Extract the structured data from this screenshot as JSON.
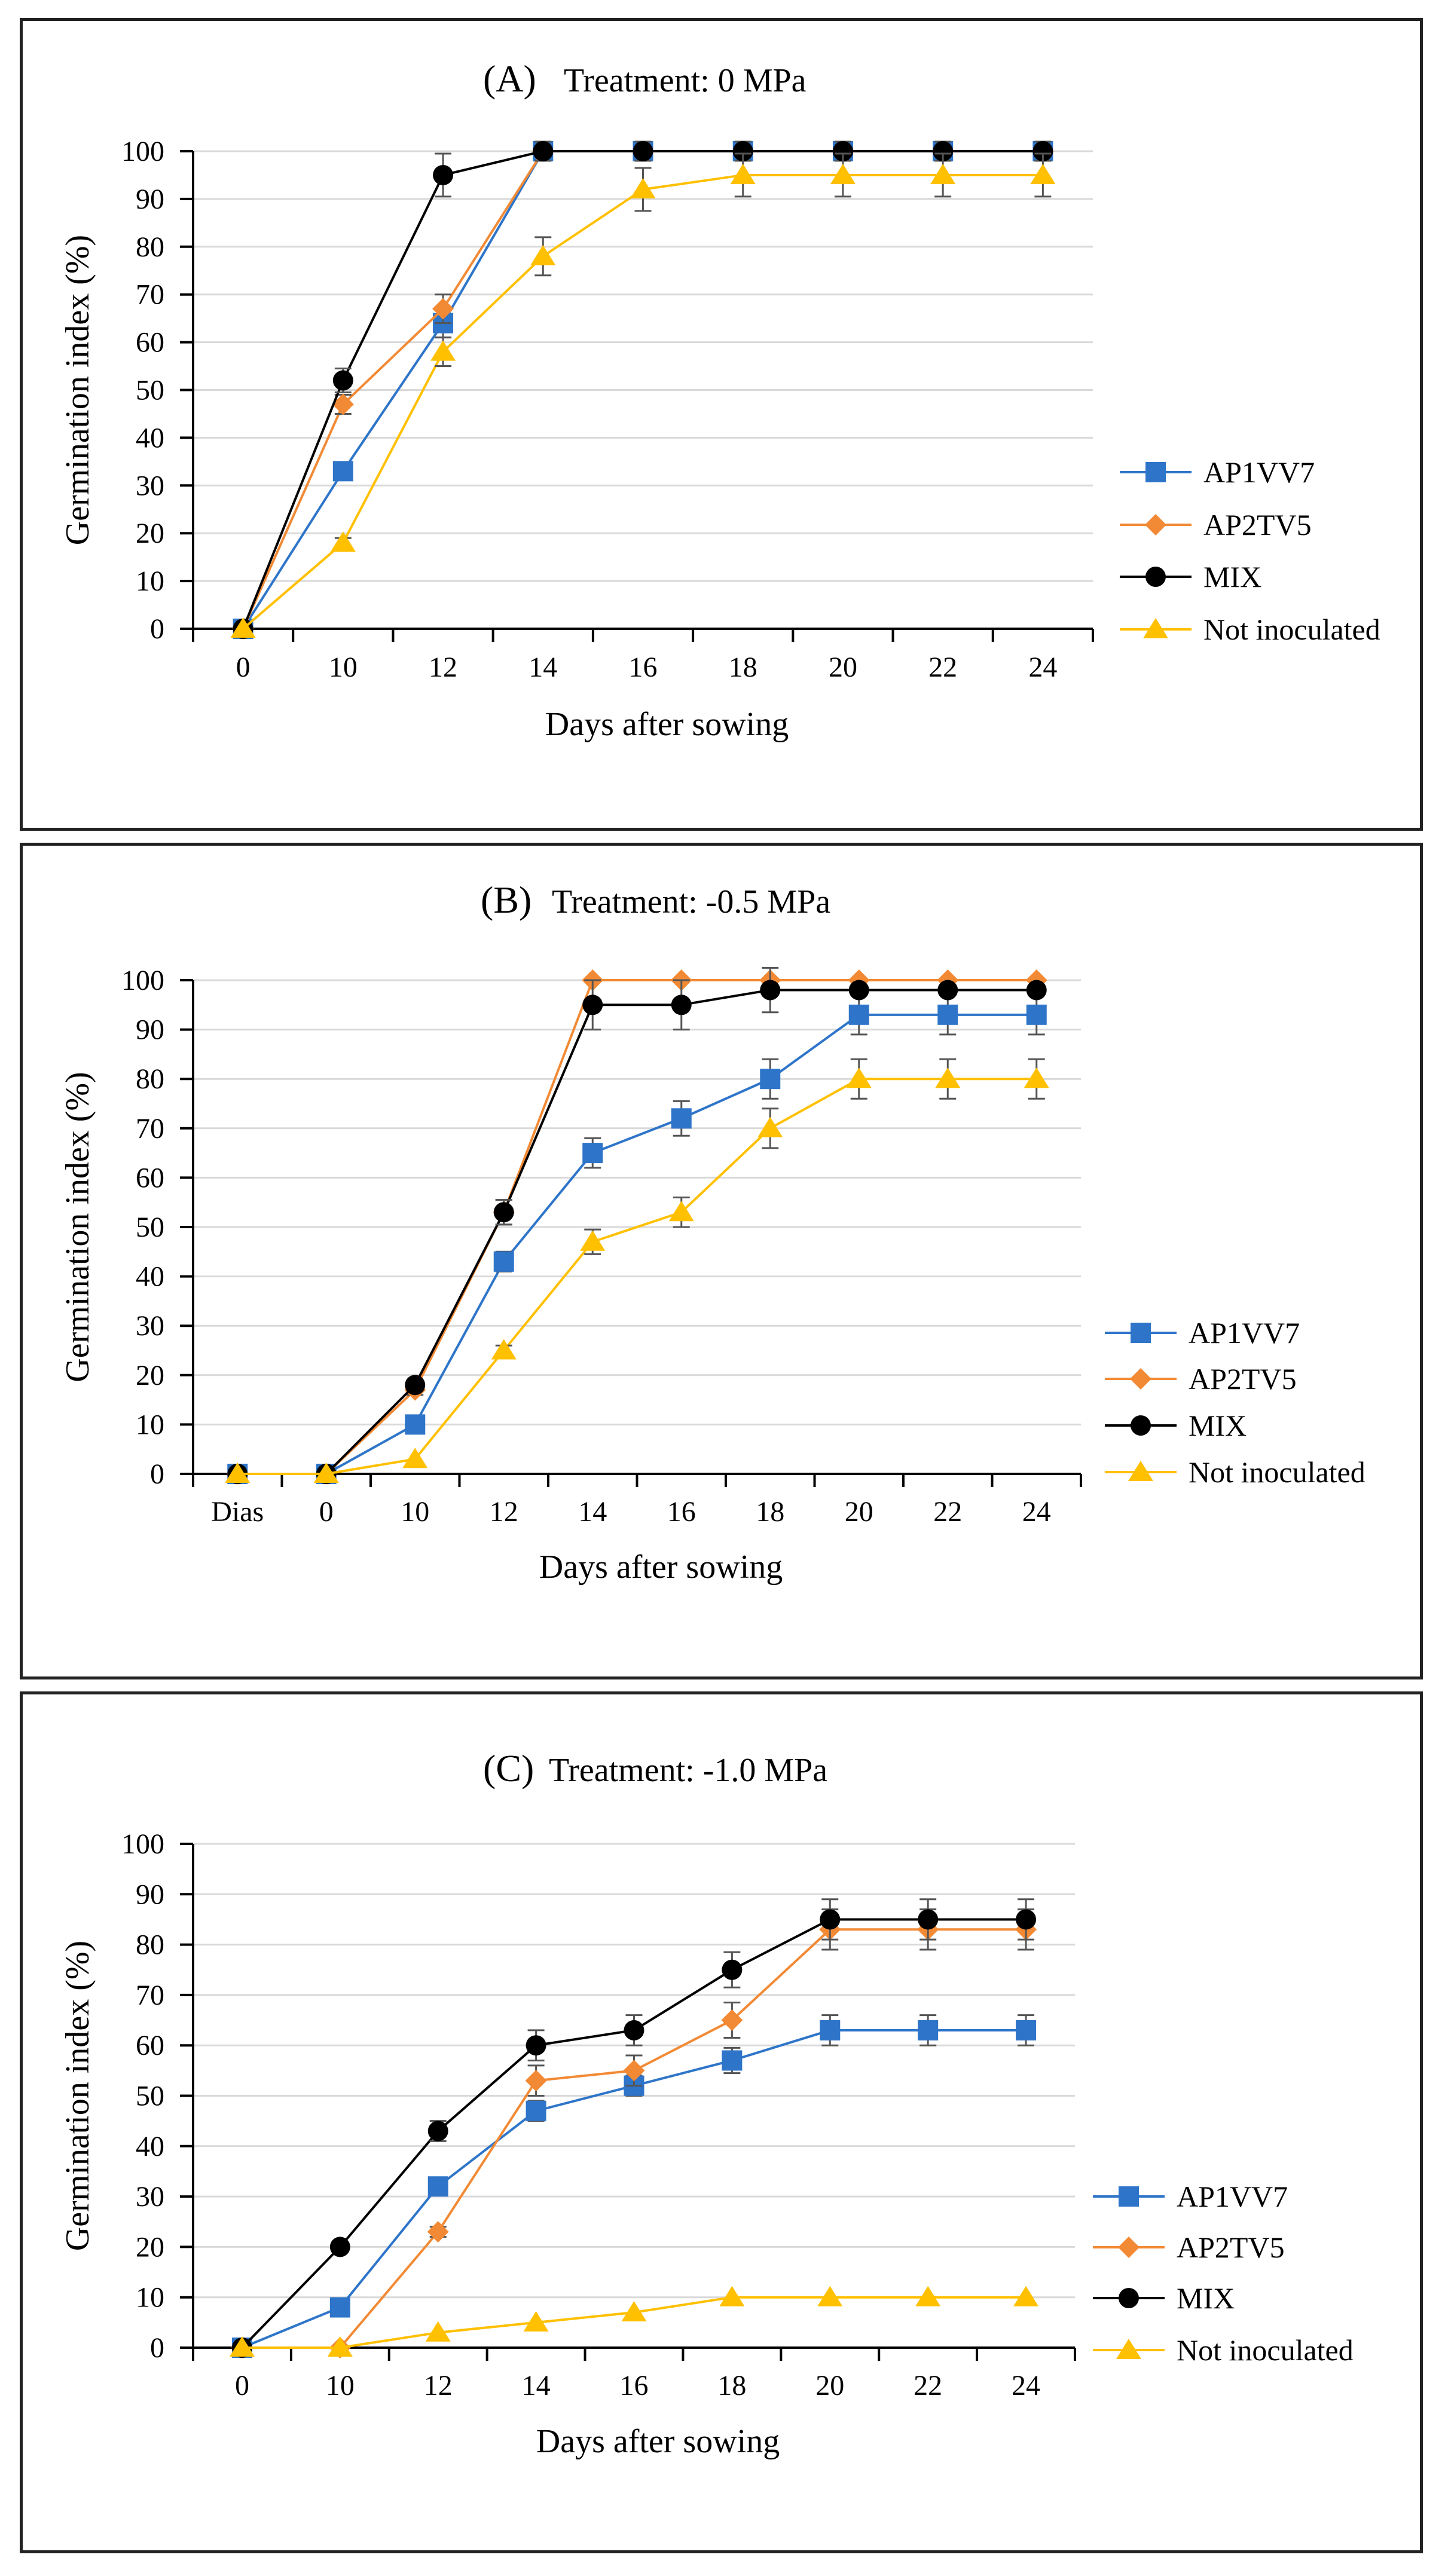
{
  "chart_data": [
    {
      "type": "line",
      "title_letter": "(A)",
      "title": "Treatment: 0 MPa",
      "xlabel": "Days after sowing",
      "ylabel": "Germination index (%)",
      "categories": [
        "0",
        "10",
        "12",
        "14",
        "16",
        "18",
        "20",
        "22",
        "24"
      ],
      "ylim": [
        0,
        100
      ],
      "yticks": [
        "0",
        "10",
        "20",
        "30",
        "40",
        "50",
        "60",
        "70",
        "80",
        "90",
        "100"
      ],
      "series": [
        {
          "name": "AP1VV7",
          "color": "#2E75C9",
          "marker": "square",
          "values": [
            0,
            33,
            64,
            100,
            100,
            100,
            100,
            100,
            100
          ],
          "errors": [
            0,
            1.5,
            3,
            2,
            2,
            2,
            2,
            2,
            2
          ]
        },
        {
          "name": "AP2TV5",
          "color": "#F28A35",
          "marker": "diamond",
          "values": [
            0,
            47,
            67,
            100,
            100,
            100,
            100,
            100,
            100
          ],
          "errors": [
            0,
            2,
            3,
            2,
            2,
            2,
            2,
            2,
            2
          ]
        },
        {
          "name": "MIX",
          "color": "#000000",
          "marker": "circle",
          "values": [
            0,
            52,
            95,
            100,
            100,
            100,
            100,
            100,
            100
          ],
          "errors": [
            0,
            2.5,
            4.5,
            2,
            2,
            2,
            2,
            2,
            2
          ]
        },
        {
          "name": "Not inoculated",
          "color": "#FFC000",
          "marker": "triangle",
          "values": [
            0,
            18,
            58,
            78,
            92,
            95,
            95,
            95,
            95
          ],
          "errors": [
            0,
            1,
            3,
            4,
            4.5,
            4.5,
            4.5,
            4.5,
            4.5
          ]
        }
      ]
    },
    {
      "type": "line",
      "title_letter": "(B)",
      "title": "Treatment: -0.5 MPa",
      "xlabel": "Days after sowing",
      "ylabel": "Germination index (%)",
      "categories": [
        "Dias",
        "0",
        "10",
        "12",
        "14",
        "16",
        "18",
        "20",
        "22",
        "24"
      ],
      "ylim": [
        0,
        100
      ],
      "yticks": [
        "0",
        "10",
        "20",
        "30",
        "40",
        "50",
        "60",
        "70",
        "80",
        "90",
        "100"
      ],
      "series": [
        {
          "name": "AP1VV7",
          "color": "#2E75C9",
          "marker": "square",
          "values": [
            0,
            0,
            10,
            43,
            65,
            72,
            80,
            93,
            93,
            93
          ],
          "errors": [
            0,
            0,
            1,
            2,
            3,
            3.5,
            4,
            4,
            4,
            4
          ]
        },
        {
          "name": "AP2TV5",
          "color": "#F28A35",
          "marker": "diamond",
          "values": [
            0,
            0,
            17,
            53,
            100,
            100,
            100,
            100,
            100,
            100
          ],
          "errors": [
            0,
            0,
            1,
            2.5,
            0,
            0,
            0,
            0,
            0,
            0
          ]
        },
        {
          "name": "MIX",
          "color": "#000000",
          "marker": "circle",
          "values": [
            0,
            0,
            18,
            53,
            95,
            95,
            98,
            98,
            98,
            98
          ],
          "errors": [
            0,
            0,
            1,
            2.5,
            5,
            5,
            4.5,
            0,
            0,
            0
          ]
        },
        {
          "name": "Not inoculated",
          "color": "#FFC000",
          "marker": "triangle",
          "values": [
            0,
            0,
            3,
            25,
            47,
            53,
            70,
            80,
            80,
            80
          ],
          "errors": [
            0,
            0,
            0,
            1,
            2.5,
            3,
            4,
            4,
            4,
            4
          ]
        }
      ]
    },
    {
      "type": "line",
      "title_letter": "(C)",
      "title": "Treatment: -1.0 MPa",
      "xlabel": "Days after sowing",
      "ylabel": "Germination index (%)",
      "categories": [
        "0",
        "10",
        "12",
        "14",
        "16",
        "18",
        "20",
        "22",
        "24"
      ],
      "ylim": [
        0,
        100
      ],
      "yticks": [
        "0",
        "10",
        "20",
        "30",
        "40",
        "50",
        "60",
        "70",
        "80",
        "90",
        "100"
      ],
      "series": [
        {
          "name": "AP1VV7",
          "color": "#2E75C9",
          "marker": "square",
          "values": [
            0,
            8,
            32,
            47,
            52,
            57,
            63,
            63,
            63
          ],
          "errors": [
            0,
            0.5,
            1,
            2,
            2,
            2.5,
            3,
            3,
            3
          ]
        },
        {
          "name": "AP2TV5",
          "color": "#F28A35",
          "marker": "diamond",
          "values": [
            0,
            0,
            23,
            53,
            55,
            65,
            83,
            83,
            83
          ],
          "errors": [
            0,
            0,
            1,
            3,
            3,
            3.5,
            4,
            4,
            4
          ]
        },
        {
          "name": "MIX",
          "color": "#000000",
          "marker": "circle",
          "values": [
            0,
            20,
            43,
            60,
            63,
            75,
            85,
            85,
            85
          ],
          "errors": [
            0,
            0.5,
            2,
            3,
            3,
            3.5,
            4,
            4,
            4
          ]
        },
        {
          "name": "Not inoculated",
          "color": "#FFC000",
          "marker": "triangle",
          "values": [
            0,
            0,
            3,
            5,
            7,
            10,
            10,
            10,
            10
          ],
          "errors": [
            0,
            0,
            0,
            0,
            0,
            0,
            0,
            0,
            0
          ]
        }
      ]
    }
  ]
}
